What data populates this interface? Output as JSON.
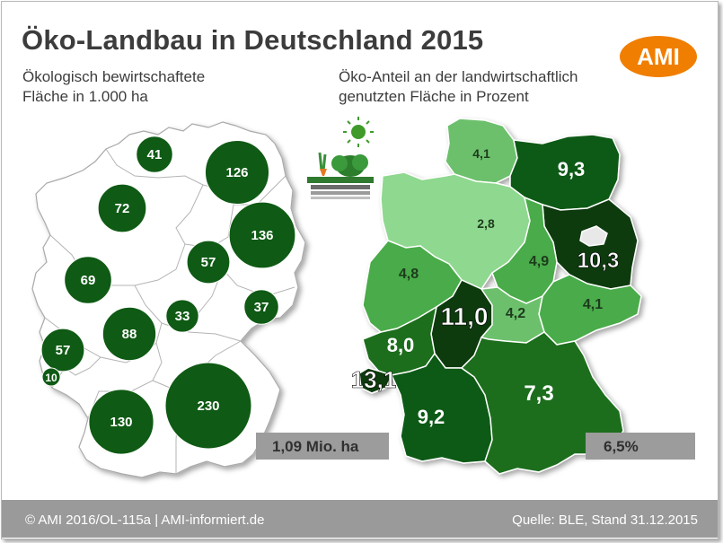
{
  "title": "Öko-Landbau in Deutschland 2015",
  "left_subtitle": [
    "Ökologisch bewirtschaftete",
    "Fläche in 1.000 ha"
  ],
  "right_subtitle": [
    "Öko-Anteil an der landwirtschaftlich",
    "genutzten Fläche in Prozent"
  ],
  "logo_text": "AMI",
  "left_total": "1,09 Mio. ha",
  "right_total": "6,5%",
  "footer_left": "© AMI 2016/OL-115a | AMI-informiert.de",
  "footer_right": "Quelle: BLE, Stand 31.12.2015",
  "colors": {
    "dark_green": "#0f5a14",
    "title_gray": "#3c3c3c",
    "orange": "#f07e00",
    "footer_gray": "#9a9a9a"
  },
  "icon": "organic-vegetables-sun-icon",
  "chart_data": [
    {
      "type": "bubble-map",
      "unit": "1.000 ha",
      "values": [
        41,
        126,
        72,
        136,
        57,
        69,
        33,
        37,
        88,
        57,
        10,
        230,
        130
      ],
      "labels": [
        "41",
        "126",
        "72",
        "136",
        "57",
        "69",
        "33",
        "37",
        "88",
        "57",
        "10",
        "230",
        "130"
      ]
    },
    {
      "type": "choropleth",
      "unit": "Prozent",
      "values": [
        4.1,
        9.3,
        2.8,
        10.3,
        4.9,
        4.8,
        4.1,
        11.0,
        4.2,
        8.0,
        13.1,
        9.2,
        7.3
      ],
      "labels": [
        "4,1",
        "9,3",
        "2,8",
        "10,3",
        "4,9",
        "4,8",
        "4,1",
        "11,0",
        "4,2",
        "8,0",
        "13,1",
        "9,2",
        "7,3"
      ]
    }
  ]
}
